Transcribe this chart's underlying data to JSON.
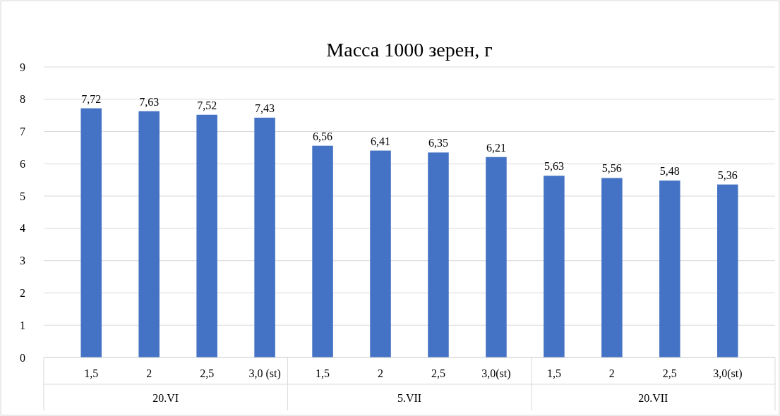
{
  "chart_data": {
    "type": "bar",
    "title": "Масса 1000 зерен, г",
    "categories": [
      "1,5",
      "2",
      "2,5",
      "3,0 (st)",
      "1,5",
      "2",
      "2,5",
      "3,0(st)",
      "1,5",
      "2",
      "2,5",
      "3,0(st)"
    ],
    "values": [
      7.72,
      7.63,
      7.52,
      7.43,
      6.56,
      6.41,
      6.35,
      6.21,
      5.63,
      5.56,
      5.48,
      5.36
    ],
    "value_labels": [
      "7,72",
      "7,63",
      "7,52",
      "7,43",
      "6,56",
      "6,41",
      "6,35",
      "6,21",
      "5,63",
      "5,56",
      "5,48",
      "5,36"
    ],
    "color": "#4472c4",
    "ylim": [
      0,
      9
    ],
    "yticks": [
      0,
      1,
      2,
      3,
      4,
      5,
      6,
      7,
      8,
      9
    ],
    "grid": "y",
    "annotations": [
      "20.VI",
      "5.VII",
      "20.VII"
    ]
  }
}
